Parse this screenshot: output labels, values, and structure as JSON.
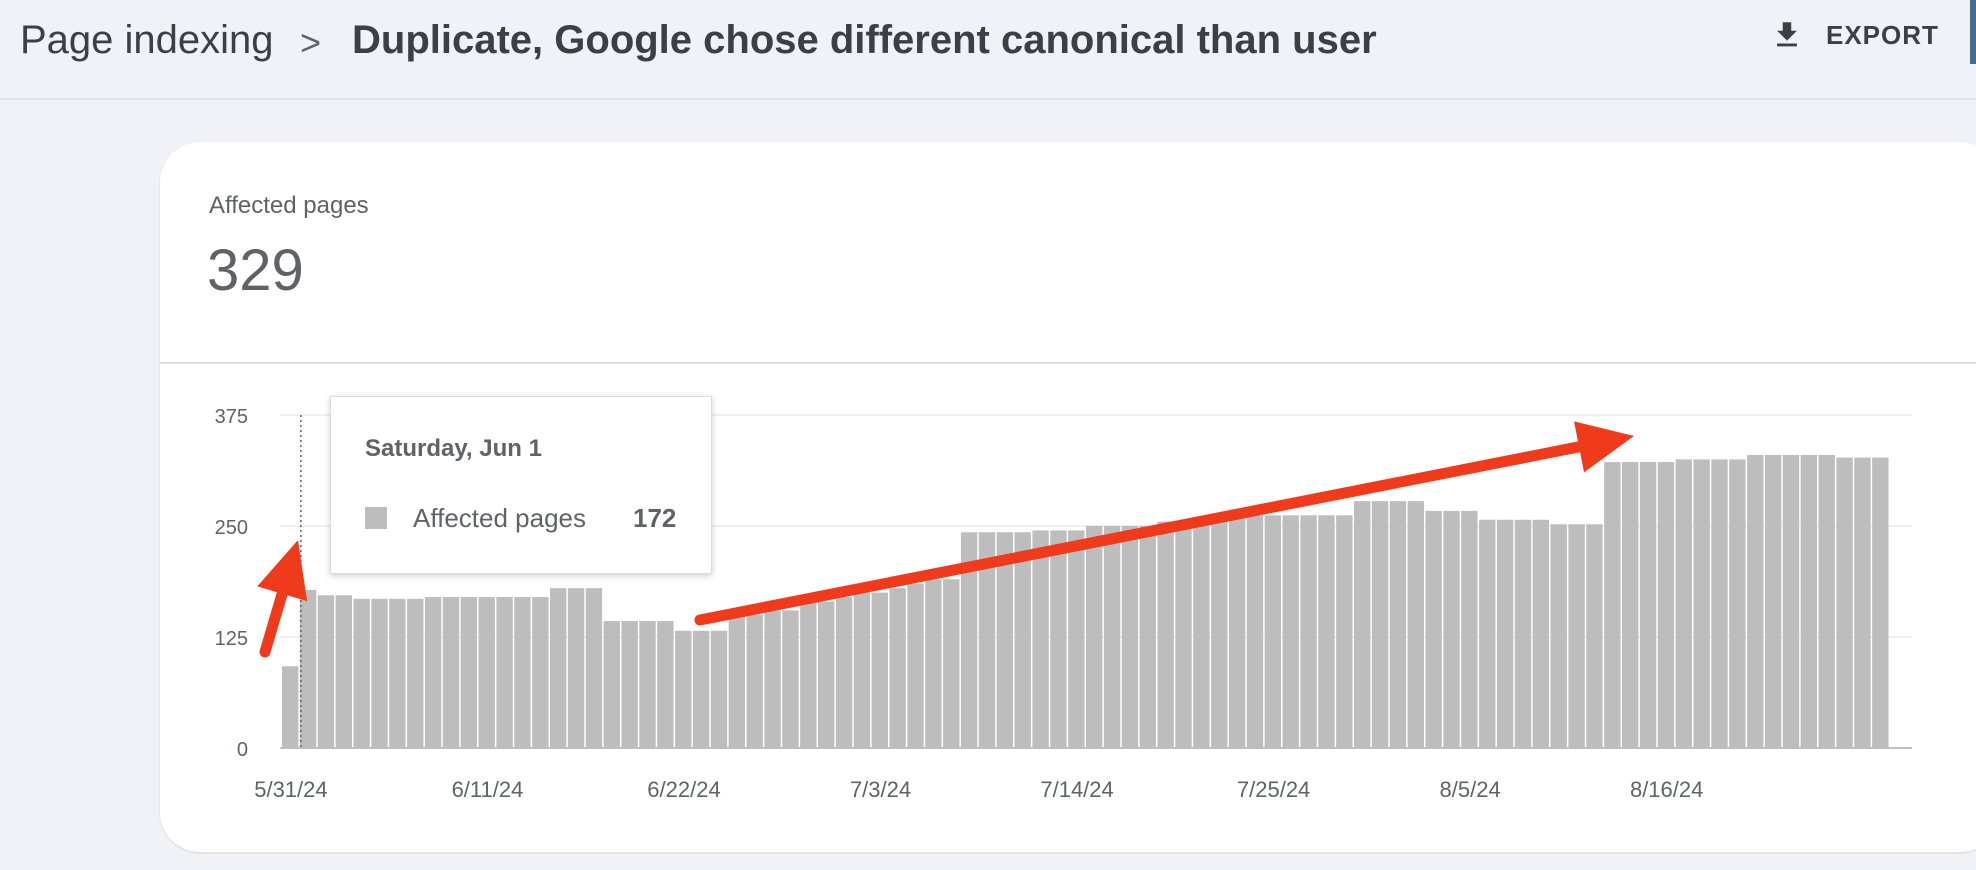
{
  "breadcrumb": {
    "root": "Page indexing",
    "separator": ">",
    "current": "Duplicate, Google chose different canonical than user"
  },
  "toolbar": {
    "export_label": "EXPORT",
    "export_icon": "download-icon"
  },
  "summary": {
    "label": "Affected pages",
    "value": "329"
  },
  "tooltip": {
    "date": "Saturday, Jun 1",
    "series": "Affected pages",
    "value": "172"
  },
  "colors": {
    "bar": "#bdbdbd",
    "arrow": "#f03a1c",
    "grid": "#e8eaed",
    "text": "#5f6368"
  },
  "chart_data": {
    "type": "bar",
    "x_tick_labels": [
      "5/31/24",
      "6/11/24",
      "6/22/24",
      "7/3/24",
      "7/14/24",
      "7/25/24",
      "8/5/24",
      "8/16/24"
    ],
    "y_tick_labels": [
      "0",
      "125",
      "250",
      "375"
    ],
    "ylim": [
      0,
      375
    ],
    "grid": true,
    "series": [
      {
        "name": "Affected pages",
        "values": [
          92,
          178,
          172,
          172,
          168,
          168,
          168,
          168,
          170,
          170,
          170,
          170,
          170,
          170,
          170,
          180,
          180,
          180,
          143,
          143,
          143,
          143,
          132,
          132,
          132,
          150,
          150,
          155,
          155,
          165,
          165,
          170,
          175,
          175,
          180,
          185,
          190,
          190,
          243,
          243,
          243,
          243,
          245,
          245,
          245,
          250,
          250,
          250,
          250,
          255,
          255,
          258,
          258,
          262,
          262,
          262,
          262,
          262,
          262,
          262,
          278,
          278,
          278,
          278,
          267,
          267,
          267,
          257,
          257,
          257,
          257,
          252,
          252,
          252,
          322,
          322,
          322,
          322,
          325,
          325,
          325,
          325,
          330,
          330,
          330,
          330,
          330,
          327,
          327,
          327
        ]
      }
    ]
  }
}
